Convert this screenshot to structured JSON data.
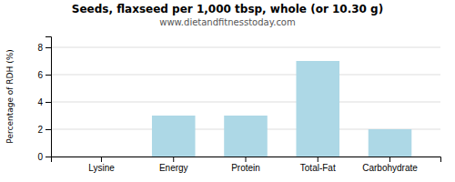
{
  "chart_data": {
    "type": "bar",
    "title": "Seeds, flaxseed per 1,000 tbsp, whole (or 10.30 g)",
    "subtitle": "www.dietandfitnesstoday.com",
    "categories": [
      "Lysine",
      "Energy",
      "Protein",
      "Total-Fat",
      "Carbohydrate"
    ],
    "values": [
      0.0,
      3.0,
      3.0,
      7.0,
      2.0
    ],
    "color": "#add8e6",
    "ylabel": "Percentage of RDH (%)",
    "ylim": [
      0,
      8.8
    ],
    "yticks": [
      0,
      2,
      4,
      6,
      8
    ],
    "grid": true
  }
}
